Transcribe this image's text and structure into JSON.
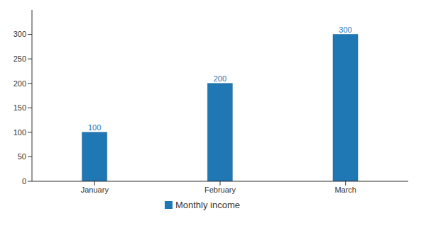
{
  "chart_data": {
    "type": "bar",
    "categories": [
      "January",
      "February",
      "March"
    ],
    "series": [
      {
        "name": "Monthly income",
        "color": "#1f77b4",
        "values": [
          100,
          200,
          300
        ]
      }
    ],
    "ylim": [
      0,
      350
    ],
    "yticks": [
      0,
      50,
      100,
      150,
      200,
      250,
      300
    ],
    "data_labels": true,
    "legend": "bottom",
    "grid": false
  }
}
